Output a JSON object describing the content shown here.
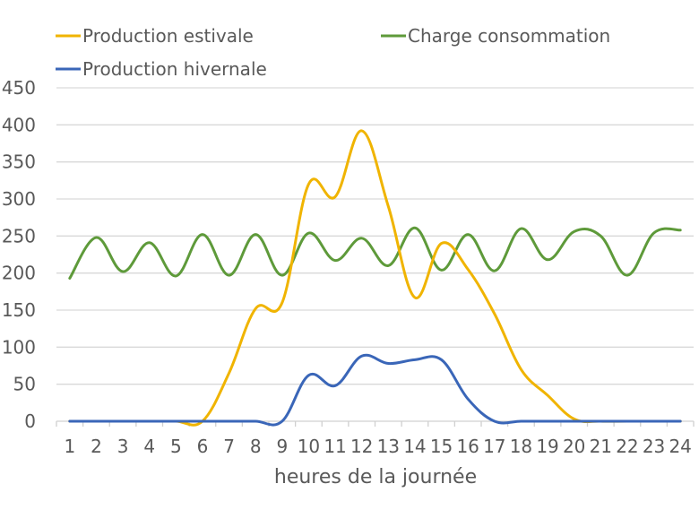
{
  "chart_data": {
    "type": "line",
    "title": "",
    "xlabel": "heures de la journée",
    "ylabel": "",
    "ylim": [
      0,
      450
    ],
    "yticks": [
      0,
      50,
      100,
      150,
      200,
      250,
      300,
      350,
      400,
      450
    ],
    "categories": [
      "1",
      "2",
      "3",
      "4",
      "5",
      "6",
      "7",
      "8",
      "9",
      "10",
      "11",
      "12",
      "13",
      "14",
      "15",
      "16",
      "17",
      "18",
      "19",
      "20",
      "21",
      "22",
      "23",
      "24"
    ],
    "grid": true,
    "legend_position": "top",
    "series": [
      {
        "name": "Production estivale",
        "color": "#F0B400",
        "values": [
          0,
          0,
          0,
          0,
          0,
          0,
          65,
          152,
          160,
          320,
          303,
          392,
          290,
          167,
          240,
          205,
          145,
          70,
          35,
          3,
          0,
          0,
          0,
          0
        ]
      },
      {
        "name": "Charge consommation",
        "color": "#5E9A3A",
        "values": [
          193,
          248,
          202,
          241,
          196,
          252,
          197,
          252,
          197,
          254,
          217,
          247,
          210,
          261,
          204,
          252,
          203,
          260,
          218,
          256,
          250,
          197,
          254,
          258
        ]
      },
      {
        "name": "Production hivernale",
        "color": "#3A66B8",
        "values": [
          0,
          0,
          0,
          0,
          0,
          0,
          0,
          0,
          0,
          62,
          48,
          88,
          78,
          83,
          83,
          30,
          0,
          0,
          0,
          0,
          0,
          0,
          0,
          0
        ]
      }
    ]
  }
}
